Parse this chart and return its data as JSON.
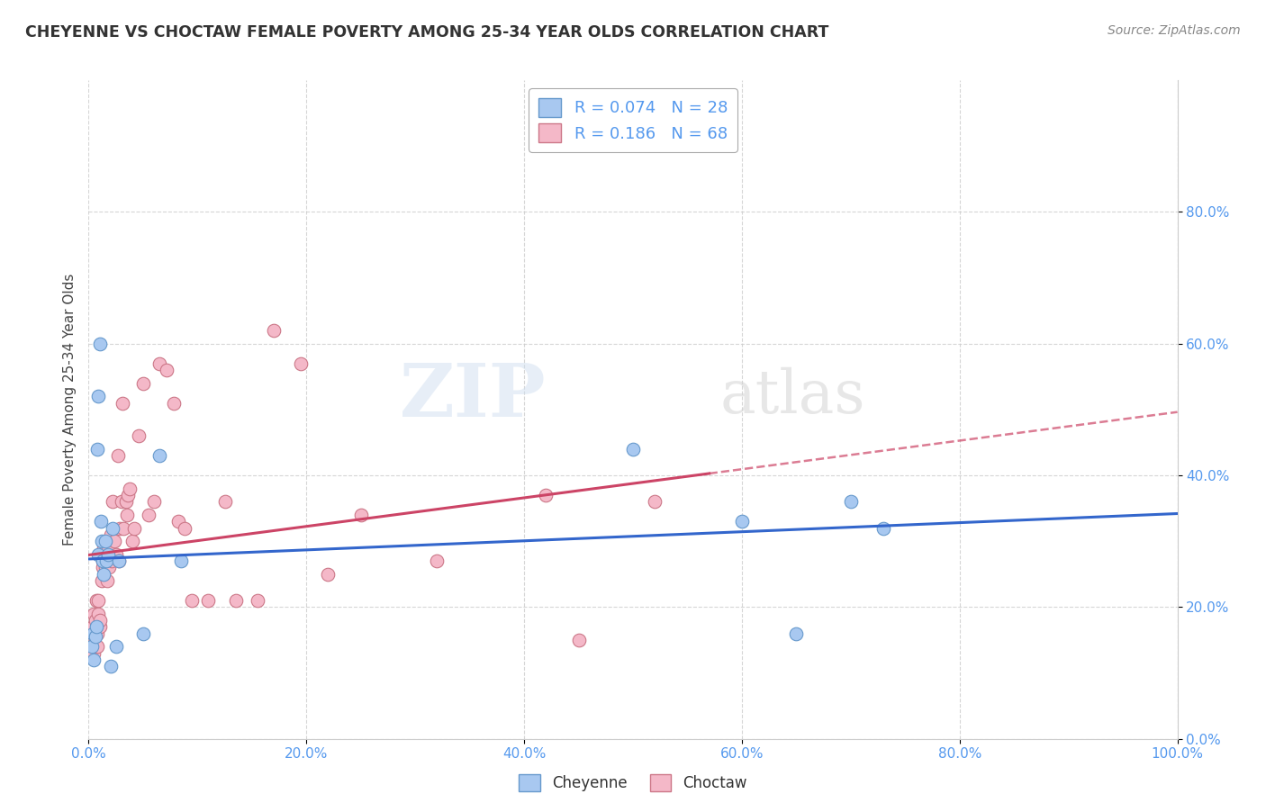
{
  "title": "CHEYENNE VS CHOCTAW FEMALE POVERTY AMONG 25-34 YEAR OLDS CORRELATION CHART",
  "source": "Source: ZipAtlas.com",
  "ylabel": "Female Poverty Among 25-34 Year Olds",
  "xlim": [
    0,
    1.0
  ],
  "ylim": [
    0,
    1.0
  ],
  "cheyenne_color": "#a8c8f0",
  "cheyenne_edge_color": "#6699cc",
  "choctaw_color": "#f4b8c8",
  "choctaw_edge_color": "#cc7788",
  "cheyenne_line_color": "#3366cc",
  "choctaw_line_color": "#cc4466",
  "cheyenne_R": 0.074,
  "cheyenne_N": 28,
  "choctaw_R": 0.186,
  "choctaw_N": 68,
  "watermark_zip": "ZIP",
  "watermark_atlas": "atlas",
  "background_color": "#ffffff",
  "tick_color": "#5599ee",
  "grid_color": "#cccccc",
  "cheyenne_x": [
    0.003,
    0.004,
    0.005,
    0.006,
    0.007,
    0.008,
    0.009,
    0.009,
    0.01,
    0.011,
    0.012,
    0.013,
    0.014,
    0.015,
    0.016,
    0.018,
    0.02,
    0.022,
    0.025,
    0.028,
    0.05,
    0.065,
    0.085,
    0.5,
    0.6,
    0.65,
    0.7,
    0.73
  ],
  "cheyenne_y": [
    0.14,
    0.16,
    0.12,
    0.155,
    0.17,
    0.44,
    0.28,
    0.52,
    0.6,
    0.33,
    0.3,
    0.27,
    0.25,
    0.3,
    0.27,
    0.28,
    0.11,
    0.32,
    0.14,
    0.27,
    0.16,
    0.43,
    0.27,
    0.44,
    0.33,
    0.16,
    0.36,
    0.32
  ],
  "choctaw_x": [
    0.002,
    0.003,
    0.004,
    0.004,
    0.005,
    0.005,
    0.006,
    0.006,
    0.007,
    0.007,
    0.008,
    0.008,
    0.009,
    0.009,
    0.009,
    0.01,
    0.01,
    0.011,
    0.012,
    0.012,
    0.013,
    0.013,
    0.013,
    0.014,
    0.015,
    0.016,
    0.017,
    0.018,
    0.019,
    0.02,
    0.021,
    0.022,
    0.024,
    0.025,
    0.027,
    0.028,
    0.029,
    0.03,
    0.031,
    0.032,
    0.034,
    0.035,
    0.036,
    0.038,
    0.04,
    0.042,
    0.046,
    0.05,
    0.055,
    0.06,
    0.065,
    0.072,
    0.078,
    0.082,
    0.088,
    0.095,
    0.11,
    0.125,
    0.135,
    0.155,
    0.17,
    0.195,
    0.22,
    0.25,
    0.32,
    0.42,
    0.45,
    0.52
  ],
  "choctaw_y": [
    0.14,
    0.13,
    0.16,
    0.17,
    0.19,
    0.13,
    0.16,
    0.18,
    0.21,
    0.14,
    0.16,
    0.14,
    0.17,
    0.19,
    0.21,
    0.17,
    0.18,
    0.28,
    0.24,
    0.28,
    0.27,
    0.28,
    0.26,
    0.29,
    0.26,
    0.27,
    0.24,
    0.29,
    0.26,
    0.31,
    0.27,
    0.36,
    0.3,
    0.28,
    0.43,
    0.27,
    0.32,
    0.36,
    0.51,
    0.32,
    0.36,
    0.34,
    0.37,
    0.38,
    0.3,
    0.32,
    0.46,
    0.54,
    0.34,
    0.36,
    0.57,
    0.56,
    0.51,
    0.33,
    0.32,
    0.21,
    0.21,
    0.36,
    0.21,
    0.21,
    0.62,
    0.57,
    0.25,
    0.34,
    0.27,
    0.37,
    0.15,
    0.36
  ]
}
